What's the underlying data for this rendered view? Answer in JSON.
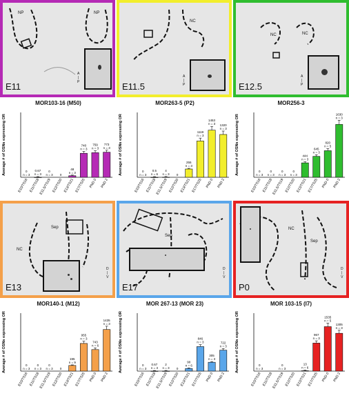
{
  "colors": {
    "magenta": "#b52ab5",
    "yellow": "#f2ee2c",
    "green": "#2fbd2f",
    "orange": "#f4a04a",
    "blue": "#5aa6ea",
    "red": "#e62222"
  },
  "panels": [
    {
      "stage": "E11",
      "labels": [
        "NP",
        "NP"
      ],
      "axis": [
        "A",
        "P"
      ]
    },
    {
      "stage": "E11.5",
      "labels": [
        "NC"
      ],
      "axis": [
        "A",
        "P"
      ]
    },
    {
      "stage": "E12.5",
      "labels": [
        "NC",
        "NC"
      ],
      "axis": [
        "A",
        "P"
      ]
    },
    {
      "stage": "E13",
      "labels": [
        "NC",
        "Sep"
      ],
      "axis": [
        "D",
        "V"
      ]
    },
    {
      "stage": "E17",
      "labels": [
        "Sep",
        "NC"
      ],
      "axis": [
        "D",
        "V"
      ]
    },
    {
      "stage": "P0",
      "labels": [
        "NC",
        "Sep"
      ],
      "axis": [
        "D",
        "V"
      ]
    }
  ],
  "chart_data": [
    {
      "type": "bar",
      "title": "MOR103-16 (M50)",
      "ylabel": "Average # of OSNs expressing OR",
      "categories": [
        "E10/TS16",
        "E11/TS18",
        "E11.5/TS19",
        "E12/TS20",
        "E13/TS21",
        "E17/TS25",
        "PND 0",
        "PND 2"
      ],
      "values": [
        0,
        0.67,
        0,
        0,
        48,
        740,
        759,
        773
      ],
      "value_labels": [
        "0",
        "0.67",
        "0",
        "0",
        "48",
        "740",
        "759",
        "773"
      ],
      "n_labels": [
        "n = 3",
        "n = 3",
        "n = 3",
        "",
        "n = 3",
        "n = 3",
        "n = 3",
        "n = 3"
      ],
      "ylim": [
        0,
        2000
      ],
      "color": "#b52ab5"
    },
    {
      "type": "bar",
      "title": "MOR263-5 (P2)",
      "ylabel": "Average # of OSNs expressing OR",
      "categories": [
        "E10/TS16",
        "E11/TS18",
        "E11.5/TS19",
        "E12/TS20",
        "E13/TS21",
        "E17/TS25",
        "PND 0",
        "PND 2"
      ],
      "values": [
        0,
        0.5,
        4,
        0,
        255,
        1119,
        1453,
        1320
      ],
      "value_labels": [
        "0",
        "0.5",
        "4",
        "0",
        "255",
        "1119",
        "1453",
        "1320"
      ],
      "n_labels": [
        "n = 3",
        "n = 6",
        "n = 3",
        "",
        "n = 3",
        "n = 3",
        "n = 3",
        "n = 3"
      ],
      "ylim": [
        0,
        2000
      ],
      "color": "#f2ee2c"
    },
    {
      "type": "bar",
      "title": "MOR256-3",
      "ylabel": "Average # of OSNs expressing OR",
      "categories": [
        "E10/TS16",
        "E11/TS18",
        "E11.5/TS19",
        "E12/TS20",
        "E13/TS21",
        "E17/TS25",
        "PND 0",
        "PND 2"
      ],
      "values": [
        0,
        0,
        0,
        0,
        444,
        645,
        820,
        1630
      ],
      "value_labels": [
        "0",
        "0",
        "0",
        "0",
        "444",
        "645",
        "820",
        "1630"
      ],
      "n_labels": [
        "n = 3",
        "n = 3",
        "n = 3",
        "n = 3",
        "n = 3",
        "n = 3",
        "n = 5",
        "n = 3"
      ],
      "ylim": [
        0,
        2000
      ],
      "color": "#2fbd2f"
    },
    {
      "type": "bar",
      "title": "MOR140-1 (M12)",
      "ylabel": "Average # of OSNs expressing OR",
      "categories": [
        "E10/TS16",
        "E11/TS18",
        "E11.5/TS19",
        "E12/TS20",
        "E13/TS21",
        "E17/TS25",
        "PND 0",
        "PND 2"
      ],
      "values": [
        0,
        0,
        0,
        0,
        195,
        955,
        743,
        1435
      ],
      "value_labels": [
        "0",
        "0",
        "0",
        "0",
        "195",
        "955",
        "743",
        "1435"
      ],
      "n_labels": [
        "n = 3",
        "n = 3",
        "n = 3",
        "",
        "n = 9",
        "n = 3",
        "n = 6",
        "n = 3"
      ],
      "ylim": [
        0,
        2000
      ],
      "color": "#f4a04a"
    },
    {
      "type": "bar",
      "title": "MOR 267-13 (MOR 23)",
      "ylabel": "Average # of OSNs expressing OR",
      "categories": [
        "E10/TS16",
        "E11/TS18",
        "E11.5/TS19",
        "E12/TS20",
        "E13/TS21",
        "E17/TS25",
        "PND 0",
        "PND 2"
      ],
      "values": [
        0,
        0.67,
        2,
        0,
        90,
        846,
        305,
        722
      ],
      "value_labels": [
        "0",
        "0.67",
        "2",
        "0",
        "90",
        "846",
        "305",
        "722"
      ],
      "n_labels": [
        "n = 3",
        "n = 3",
        "n = 3",
        "",
        "n = 6",
        "n = 3",
        "n = 3",
        "n = 3"
      ],
      "ylim": [
        0,
        2000
      ],
      "color": "#5aa6ea"
    },
    {
      "type": "bar",
      "title": "MOR 103-15 (I7)",
      "ylabel": "Average # of OSNs expressing OR",
      "categories": [
        "E10/TS16",
        "E11/TS18",
        "E11.5/TS19",
        "E12/TS20",
        "E13/TS21",
        "E17/TS25",
        "PND 0",
        "PND 2"
      ],
      "values": [
        0,
        0,
        0,
        0,
        13,
        967,
        1535,
        1305
      ],
      "value_labels": [
        "0",
        "",
        "0",
        "",
        "13",
        "967",
        "1535",
        "1305"
      ],
      "n_labels": [
        "n = 3",
        "",
        "n = 3",
        "",
        "n = 6",
        "n = 3",
        "n = 5",
        "n = 3"
      ],
      "ylim": [
        0,
        2000
      ],
      "color": "#e62222"
    }
  ]
}
